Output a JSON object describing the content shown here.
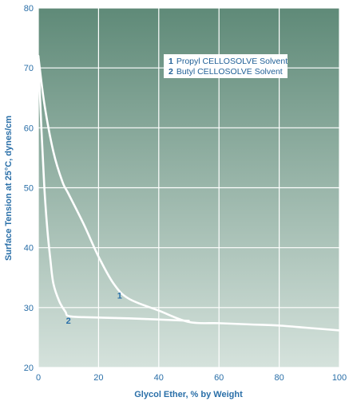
{
  "chart_data": {
    "type": "line",
    "xlabel": "Glycol Ether, % by Weight",
    "ylabel": "Surface Tension at 25°C, dynes/cm",
    "xlim": [
      0,
      100
    ],
    "ylim": [
      20,
      80
    ],
    "xticks": [
      0,
      20,
      40,
      60,
      80,
      100
    ],
    "yticks": [
      20,
      30,
      40,
      50,
      60,
      70,
      80
    ],
    "grid": true,
    "legend_position": "top-right",
    "series": [
      {
        "id": "1",
        "name": "Propyl CELLOSOLVE Solvent",
        "label": "1",
        "color": "#ffffff",
        "points": [
          [
            0,
            72
          ],
          [
            2,
            64
          ],
          [
            5,
            56
          ],
          [
            8,
            51
          ],
          [
            10,
            49
          ],
          [
            15,
            44
          ],
          [
            20,
            38.5
          ],
          [
            25,
            34
          ],
          [
            30,
            31.5
          ],
          [
            40,
            29.5
          ],
          [
            50,
            27.6
          ],
          [
            60,
            27.4
          ],
          [
            70,
            27.2
          ],
          [
            80,
            27.0
          ],
          [
            90,
            26.6
          ],
          [
            100,
            26.2
          ]
        ]
      },
      {
        "id": "2",
        "name": "Butyl CELLOSOLVE Solvent",
        "label": "2",
        "color": "#ffffff",
        "points": [
          [
            0,
            72
          ],
          [
            1,
            60
          ],
          [
            2,
            50
          ],
          [
            3,
            43
          ],
          [
            4,
            38
          ],
          [
            5,
            34
          ],
          [
            7,
            31
          ],
          [
            9,
            29.3
          ],
          [
            10,
            28.6
          ],
          [
            15,
            28.4
          ],
          [
            30,
            28.2
          ],
          [
            50,
            27.8
          ]
        ]
      }
    ],
    "legend": [
      {
        "number": "1",
        "text": "Propyl CELLOSOLVE Solvent"
      },
      {
        "number": "2",
        "text": "Butyl CELLOSOLVE Solvent"
      }
    ],
    "series_label_positions": [
      {
        "series": "1",
        "x": 27,
        "y": 31.5
      },
      {
        "series": "2",
        "x": 10,
        "y": 27.3
      }
    ]
  },
  "colors": {
    "background_top": "#5f8a78",
    "background_bottom": "#d5e2dc",
    "grid": "#ffffff",
    "text": "#2a6fa8"
  }
}
